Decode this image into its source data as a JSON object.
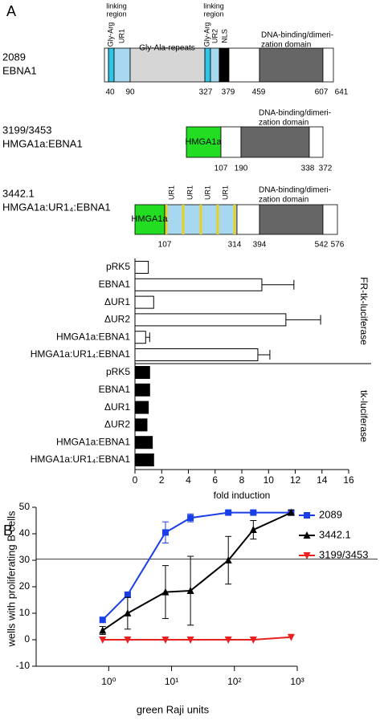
{
  "figure": {
    "panel_a": "A",
    "panel_b": "B",
    "constructs": [
      {
        "name": [
          "2089",
          "EBNA1"
        ],
        "labels": [
          "linking",
          "region",
          "Gly-Arg",
          "UR1",
          "Gly-Ala-repeats",
          "linking",
          "region",
          "Gly-Arg",
          "UR2",
          "NLS",
          "DNA-binding/dimeri-",
          "zation domain"
        ],
        "positions": [
          40,
          90,
          327,
          379,
          459,
          607,
          641
        ]
      },
      {
        "name": [
          "3199/3453",
          "HMGA1a:EBNA1"
        ],
        "labels": [
          "HMGA1a",
          "DNA-binding/dimeri-",
          "zation domain"
        ],
        "positions": [
          107,
          190,
          338,
          372
        ]
      },
      {
        "name": [
          "3442.1",
          "HMGA1a:UR1₄:EBNA1"
        ],
        "labels": [
          "HMGA1a",
          "UR1",
          "UR1",
          "UR1",
          "UR1",
          "DNA-binding/dimeri-",
          "zation domain"
        ],
        "positions": [
          107,
          314,
          394,
          542,
          576
        ]
      }
    ]
  },
  "chart_data": [
    {
      "type": "bar",
      "categories": [
        "pRK5",
        "EBNA1",
        "ΔUR1",
        "ΔUR2",
        "HMGA1a:EBNA1",
        "HMGA1a:UR1₄:EBNA1",
        "pRK5",
        "EBNA1",
        "ΔUR1",
        "ΔUR2",
        "HMGA1a:EBNA1",
        "HMGA1a:UR1₄:EBNA1"
      ],
      "series": [
        {
          "name": "FR-tk-luciferase",
          "color": "#ffffff",
          "values": [
            1.0,
            9.5,
            1.4,
            11.3,
            0.8,
            9.2,
            null,
            null,
            null,
            null,
            null,
            null
          ],
          "errors": [
            0,
            2.4,
            0,
            2.6,
            0.3,
            0.9,
            null,
            null,
            null,
            null,
            null,
            null
          ]
        },
        {
          "name": "tk-luciferase",
          "color": "#000000",
          "values": [
            null,
            null,
            null,
            null,
            null,
            null,
            1.1,
            1.1,
            1.0,
            0.9,
            1.3,
            1.4
          ]
        }
      ],
      "xlim": [
        0,
        16
      ],
      "xticks": [
        0,
        2,
        4,
        6,
        8,
        10,
        12,
        14,
        16
      ],
      "xlabel": "fold induction"
    },
    {
      "type": "line",
      "x": [
        0.8,
        2,
        8,
        20,
        80,
        200,
        800
      ],
      "series": [
        {
          "name": "2089",
          "color": "#1a3ee8",
          "marker": "square",
          "values": [
            7.5,
            17,
            40.5,
            46,
            48,
            48,
            48
          ],
          "errors": [
            1,
            1,
            4,
            1.5,
            0.5,
            0.5,
            0.5
          ]
        },
        {
          "name": "3442.1",
          "color": "#000000",
          "marker": "triangle-up",
          "values": [
            3.5,
            10,
            18,
            18.5,
            30,
            41.5,
            48
          ],
          "errors": [
            1.5,
            6,
            10,
            13,
            9,
            3.5,
            1
          ]
        },
        {
          "name": "3199/3453",
          "color": "#e8201e",
          "marker": "triangle-down",
          "values": [
            0,
            0,
            0,
            0,
            0,
            0,
            1
          ]
        }
      ],
      "xlog": true,
      "xlim": [
        0.07,
        1000
      ],
      "xticks": [
        {
          "value": 1,
          "label": "10⁰"
        },
        {
          "value": 10,
          "label": "10¹"
        },
        {
          "value": 100,
          "label": "10²"
        },
        {
          "value": 1000,
          "label": "10³"
        }
      ],
      "ylim": [
        -10,
        50
      ],
      "yticks": [
        -10,
        0,
        10,
        20,
        30,
        40,
        50
      ],
      "hline": 30.5,
      "xlabel": "green Raji units",
      "ylabel": "wells with proliferating B cells",
      "legend": "right"
    }
  ]
}
